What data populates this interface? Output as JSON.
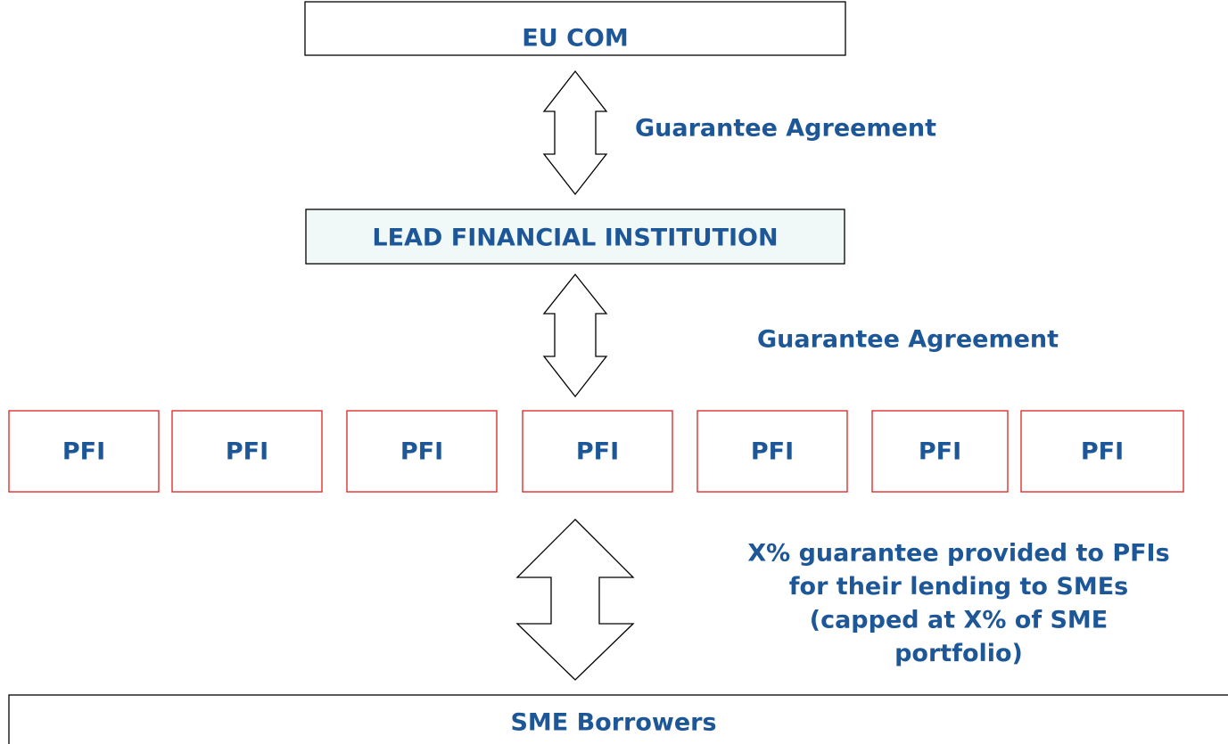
{
  "nodes": [
    {
      "label": "EU COM"
    },
    {
      "label": "LEAD FINANCIAL INSTITUTION"
    },
    {
      "label": "PFI"
    },
    {
      "label": "PFI"
    },
    {
      "label": "PFI"
    },
    {
      "label": "PFI"
    },
    {
      "label": "PFI"
    },
    {
      "label": "PFI"
    },
    {
      "label": "PFI"
    },
    {
      "label": "SME Borrowers"
    }
  ],
  "edges": [
    {
      "label_lines": [
        "Guarantee Agreement"
      ]
    },
    {
      "label_lines": [
        "Guarantee Agreement"
      ]
    },
    {
      "label_lines": [
        "X% guarantee provided to PFIs",
        "for their lending to SMEs",
        "(capped at X% of SME",
        "portfolio)"
      ]
    }
  ]
}
